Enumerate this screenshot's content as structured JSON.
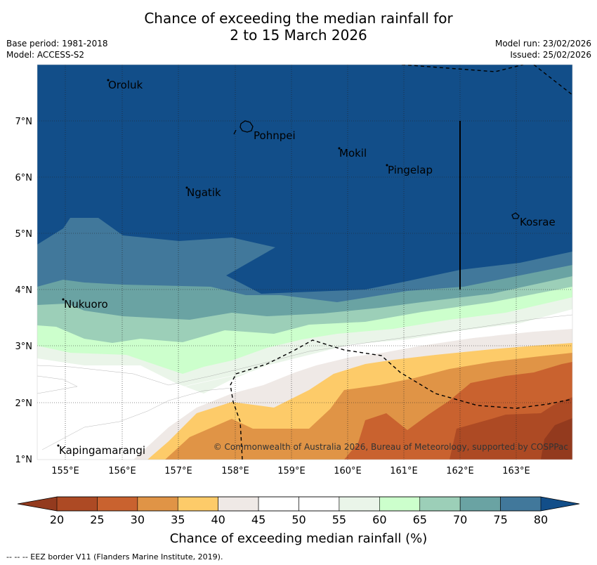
{
  "title_line1": "Chance of exceeding the median rainfall for",
  "title_line2": "2 to 15 March 2026",
  "base_period": "Base period: 1981-2018",
  "model": "Model: ACCESS-S2",
  "model_run": "Model run: 23/02/2026",
  "issued": "Issued: 25/02/2026",
  "places": [
    {
      "name": "Oroluk"
    },
    {
      "name": "Pohnpei"
    },
    {
      "name": "Mokil"
    },
    {
      "name": "Pingelap"
    },
    {
      "name": "Ngatik"
    },
    {
      "name": "Kosrae"
    },
    {
      "name": "Nukuoro"
    },
    {
      "name": "Kapingamarangi"
    }
  ],
  "lat_ticks": [
    "7°N",
    "6°N",
    "5°N",
    "4°N",
    "3°N",
    "2°N",
    "1°N"
  ],
  "lon_ticks": [
    "155°E",
    "156°E",
    "157°E",
    "158°E",
    "159°E",
    "160°E",
    "161°E",
    "162°E",
    "163°E"
  ],
  "copyright": "© Commonwealth of Australia 2026, Bureau of Meteorology, supported by COSPPac",
  "colorbar": {
    "ticks": [
      "20",
      "25",
      "30",
      "35",
      "40",
      "45",
      "50",
      "55",
      "60",
      "65",
      "70",
      "75",
      "80"
    ],
    "colors": [
      "#ad4a24",
      "#c9622f",
      "#e09446",
      "#fdcb69",
      "#efe9e6",
      "#ffffff",
      "#ffffff",
      "#eaf5e9",
      "#ccffcc",
      "#9ccfb8",
      "#6aa3a3",
      "#41789b"
    ],
    "under_color": "#933a1e",
    "over_color": "#124e89",
    "label": "Chance of exceeding median rainfall (%)"
  },
  "footer": "--  --  -- EEZ border V11 (Flanders Marine Institute, 2019)."
}
